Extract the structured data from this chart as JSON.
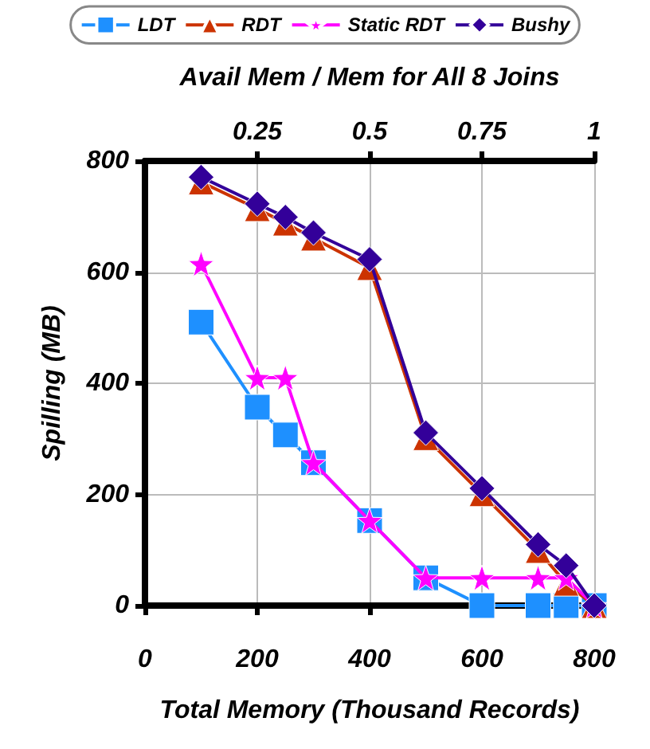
{
  "chart_data": {
    "type": "line",
    "xlabel": "Total Memory (Thousand Records)",
    "ylabel": "Spilling (MB)",
    "x2label": "Avail Mem / Mem for All 8 Joins",
    "x": [
      100,
      200,
      250,
      300,
      400,
      500,
      600,
      700,
      750,
      800
    ],
    "series": [
      {
        "name": "LDT",
        "color": "#1e90ff",
        "marker": "square",
        "values": [
          510,
          357,
          307,
          257,
          153,
          50,
          0,
          0,
          0,
          0
        ]
      },
      {
        "name": "RDT",
        "color": "#cc3300",
        "marker": "triangle",
        "values": [
          762,
          714,
          688,
          661,
          608,
          302,
          201,
          99,
          40,
          0
        ]
      },
      {
        "name": "Static RDT",
        "color": "#ff00ff",
        "marker": "star",
        "values": [
          615,
          410,
          410,
          257,
          153,
          50,
          50,
          50,
          50,
          0
        ]
      },
      {
        "name": "Bushy",
        "color": "#330099",
        "marker": "diamond",
        "values": [
          771,
          723,
          699,
          671,
          623,
          311,
          211,
          110,
          72,
          0
        ]
      }
    ],
    "xlim": [
      0,
      800
    ],
    "xticks": [
      0,
      200,
      400,
      600,
      800
    ],
    "x2lim": [
      0,
      1
    ],
    "x2ticks": [
      0.25,
      0.5,
      0.75,
      1
    ],
    "ylim": [
      0,
      800
    ],
    "yticks": [
      0,
      200,
      400,
      600,
      800
    ],
    "grid": true,
    "legend": "top",
    "line_style": "solid"
  }
}
